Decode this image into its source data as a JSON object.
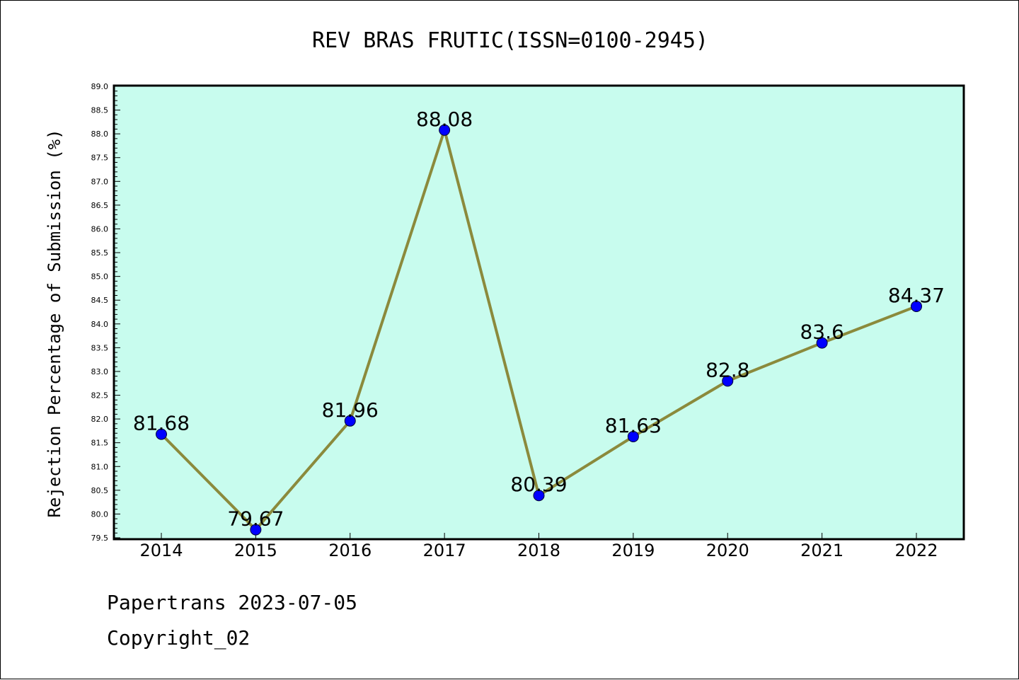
{
  "chart_data": {
    "type": "line",
    "title": "REV BRAS FRUTIC(ISSN=0100-2945)",
    "xlabel": "",
    "ylabel": "Rejection Percentage of Submission (%)",
    "categories": [
      "2014",
      "2015",
      "2016",
      "2017",
      "2018",
      "2019",
      "2020",
      "2021",
      "2022"
    ],
    "series": [
      {
        "values": [
          81.68,
          79.67,
          81.96,
          88.08,
          80.39,
          81.63,
          82.8,
          83.6,
          84.37
        ],
        "labels": [
          "81.68",
          "79.67",
          "81.96",
          "88.08",
          "80.39",
          "81.63",
          "82.8",
          "83.6",
          "84.37"
        ]
      }
    ],
    "ylim": [
      79.5,
      89.0
    ],
    "ytick_step": 0.5,
    "grid": false,
    "colors": {
      "plot_background": "#c8fcee",
      "line": "#8b8a3c",
      "marker": "#0000ff"
    }
  },
  "footer": {
    "line1": "Papertrans 2023-07-05",
    "line2": "Copyright_02"
  }
}
